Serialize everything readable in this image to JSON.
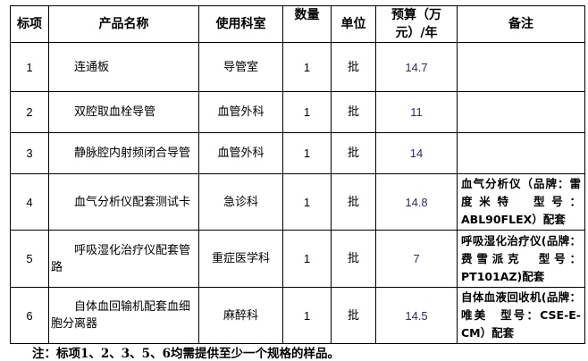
{
  "table": {
    "headers": [
      "标项",
      "产品名称",
      "使用科室",
      "数量",
      "单位",
      "预算（万元）/年",
      "备注"
    ],
    "rows": [
      {
        "no": "1",
        "name": "连通板",
        "dept": "导管室",
        "qty": "1",
        "unit": "批",
        "budget": "14.7",
        "note": ""
      },
      {
        "no": "2",
        "name": "双腔取血栓导管",
        "dept": "血管外科",
        "qty": "1",
        "unit": "批",
        "budget": "11",
        "note": ""
      },
      {
        "no": "3",
        "name": "静脉腔内射频闭合导管",
        "dept": "血管外科",
        "qty": "1",
        "unit": "批",
        "budget": "14",
        "note": ""
      },
      {
        "no": "4",
        "name": "血气分析仪配套测试卡",
        "dept": "急诊科",
        "qty": "1",
        "unit": "批",
        "budget": "14.8",
        "note": "血气分析仪（品牌：雷度米特　型号：ABL90FLEX）配套"
      },
      {
        "no": "5",
        "name": "呼吸湿化治疗仪配套管路",
        "dept": "重症医学科",
        "qty": "1",
        "unit": "批",
        "budget": "7",
        "note": "呼吸湿化治疗仪(品牌：费雪派克　型号：PT101AZ)配套"
      },
      {
        "no": "6",
        "name": "自体血回输机配套血细胞分离器",
        "dept": "麻醉科",
        "qty": "1",
        "unit": "批",
        "budget": "14.5",
        "note": "自体血液回收机(品牌：唯美　型号：CSE-E-CM）配套"
      }
    ]
  },
  "footnote": "注：标项1、2、3、5、6均需提供至少一个规格的样品。"
}
